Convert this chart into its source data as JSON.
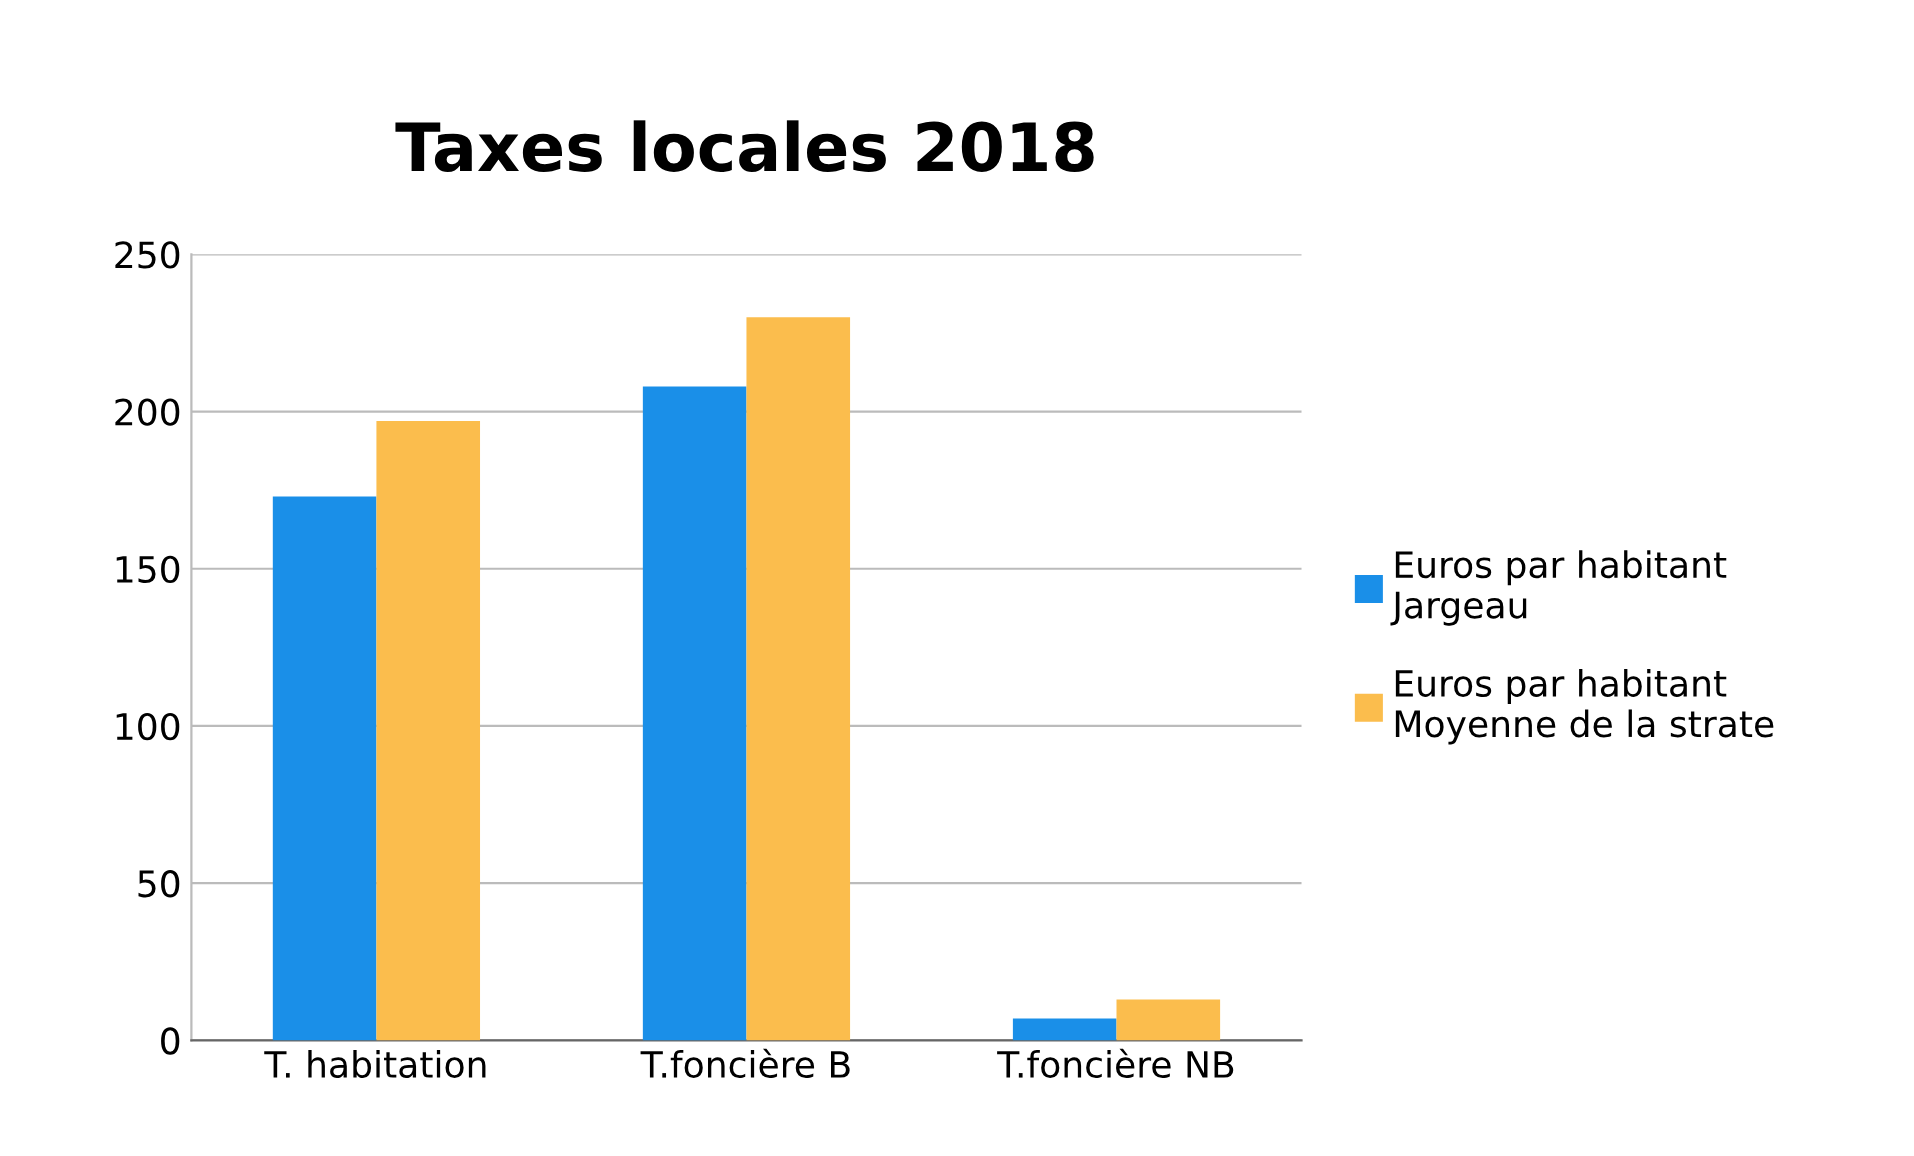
{
  "chart_data": {
    "type": "bar",
    "title": "Taxes locales 2018",
    "categories": [
      "T. habitation",
      "T.foncière B",
      "T.foncière NB"
    ],
    "series": [
      {
        "name": "Euros par habitant\nJargeau",
        "color": "#1a8fe8",
        "values": [
          173,
          208,
          7
        ]
      },
      {
        "name": "Euros par habitant\nMoyenne de la strate",
        "color": "#fbbd4d",
        "values": [
          197,
          230,
          13
        ]
      }
    ],
    "ylim": [
      0,
      250
    ],
    "yticks": [
      0,
      50,
      100,
      150,
      200,
      250
    ],
    "grid": "y",
    "legend": "right"
  }
}
